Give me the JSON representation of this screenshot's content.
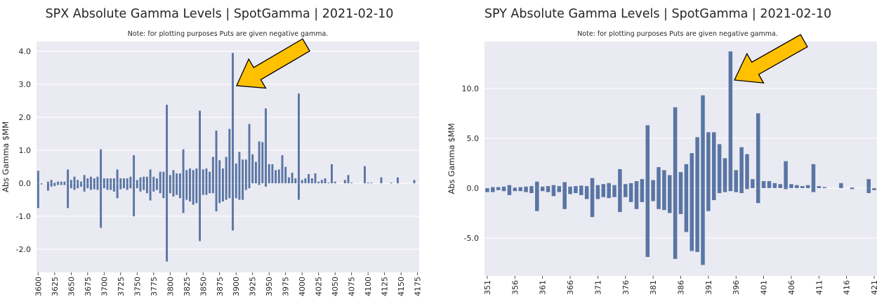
{
  "chart_data": [
    {
      "id": "spx",
      "type": "bar",
      "title": "SPX Absolute Gamma Levels | SpotGamma | 2021-02-10",
      "subtitle": "Note: for plotting purposes Puts are given negative gamma.",
      "ylabel": "Abs Gamma $MM",
      "xlabel": "",
      "ylim": [
        -2.7,
        4.3
      ],
      "yticks": [
        -2.0,
        -1.0,
        0.0,
        1.0,
        2.0,
        3.0,
        4.0
      ],
      "ytick_labels": [
        "-2.0",
        "-1.0",
        "0.0",
        "1.0",
        "2.0",
        "3.0",
        "4.0"
      ],
      "xtick_labels": [
        "3600",
        "3625",
        "3650",
        "3675",
        "3700",
        "3725",
        "3750",
        "3775",
        "3800",
        "3825",
        "3850",
        "3875",
        "3900",
        "3925",
        "3950",
        "3975",
        "4000",
        "4025",
        "4050",
        "4075",
        "4100",
        "4125",
        "4150",
        "4175"
      ],
      "grid": true,
      "legend": "none",
      "bar_color": "#5975a4",
      "background": "#eaeaf2",
      "categories": [
        3600,
        3605,
        3610,
        3615,
        3620,
        3625,
        3630,
        3635,
        3640,
        3645,
        3650,
        3655,
        3660,
        3665,
        3670,
        3675,
        3680,
        3685,
        3690,
        3695,
        3700,
        3705,
        3710,
        3715,
        3720,
        3725,
        3730,
        3735,
        3740,
        3745,
        3750,
        3755,
        3760,
        3765,
        3770,
        3775,
        3780,
        3785,
        3790,
        3795,
        3800,
        3805,
        3810,
        3815,
        3820,
        3825,
        3830,
        3835,
        3840,
        3845,
        3850,
        3855,
        3860,
        3865,
        3870,
        3875,
        3880,
        3885,
        3890,
        3895,
        3900,
        3905,
        3910,
        3915,
        3920,
        3925,
        3930,
        3935,
        3940,
        3945,
        3950,
        3955,
        3960,
        3965,
        3970,
        3975,
        3980,
        3985,
        3990,
        3995,
        4000,
        4005,
        4010,
        4015,
        4020,
        4025,
        4030,
        4035,
        4040,
        4045,
        4050,
        4055,
        4060,
        4065,
        4070,
        4075,
        4080,
        4085,
        4090,
        4095,
        4100,
        4105,
        4110,
        4115,
        4120,
        4125,
        4130,
        4135,
        4140,
        4145,
        4150,
        4155,
        4160,
        4165,
        4170,
        4175
      ],
      "calls": [
        0.38,
        0,
        0,
        0.05,
        0.1,
        0.02,
        0.05,
        0.05,
        0.05,
        0.42,
        0.1,
        0.2,
        0.1,
        0.05,
        0.25,
        0.15,
        0.2,
        0.15,
        0.2,
        1.03,
        0.15,
        0.15,
        0.15,
        0.15,
        0.42,
        0.15,
        0.15,
        0.15,
        0.2,
        0.85,
        0.1,
        0.18,
        0.2,
        0.2,
        0.42,
        0.2,
        0.15,
        0.35,
        0.35,
        2.38,
        0.25,
        0.4,
        0.3,
        0.3,
        1.03,
        0.4,
        0.45,
        0.4,
        0.45,
        2.2,
        0.42,
        0.45,
        0.35,
        0.8,
        1.6,
        0.7,
        0.45,
        0.8,
        1.65,
        3.95,
        0.6,
        0.95,
        0.72,
        0.72,
        1.8,
        0.88,
        0.65,
        1.27,
        1.25,
        2.27,
        0.58,
        0.58,
        0.4,
        0.42,
        0.85,
        0.5,
        0.18,
        0.32,
        0.15,
        2.72,
        0.1,
        0.15,
        0.28,
        0.15,
        0.3,
        0.05,
        0.1,
        0.15,
        0.02,
        0.58,
        0.05,
        0,
        0,
        0.1,
        0.25,
        0.02,
        0,
        0,
        0,
        0.52,
        0.02,
        0.02,
        0,
        0,
        0.18,
        0,
        0,
        0.02,
        0,
        0.18,
        0,
        0,
        0,
        0,
        0.1,
        0
      ],
      "puts": [
        -0.75,
        -0.03,
        0,
        -0.22,
        -0.1,
        -0.08,
        -0.05,
        -0.05,
        -0.05,
        -0.75,
        -0.15,
        -0.2,
        -0.15,
        -0.1,
        -0.25,
        -0.15,
        -0.2,
        -0.18,
        -0.2,
        -1.35,
        -0.15,
        -0.2,
        -0.2,
        -0.25,
        -0.45,
        -0.18,
        -0.15,
        -0.2,
        -0.15,
        -1.0,
        -0.15,
        -0.25,
        -0.2,
        -0.3,
        -0.52,
        -0.25,
        -0.2,
        -0.3,
        -0.45,
        -2.37,
        -0.3,
        -0.4,
        -0.35,
        -0.45,
        -0.9,
        -0.5,
        -0.55,
        -0.65,
        -0.6,
        -1.75,
        -0.35,
        -0.35,
        -0.3,
        -0.3,
        -0.85,
        -0.6,
        -0.55,
        -0.5,
        -0.45,
        -1.43,
        -0.45,
        -0.5,
        -0.5,
        -0.2,
        -0.15,
        0,
        0,
        -0.05,
        0,
        -0.1,
        0,
        0,
        0,
        0,
        0,
        0,
        0,
        0,
        0,
        -0.5,
        0,
        0,
        0,
        0,
        0,
        0,
        0,
        0,
        0,
        0,
        0,
        0,
        0,
        0,
        0,
        0,
        0,
        0,
        0,
        0,
        0,
        0,
        0,
        0,
        0,
        0,
        0,
        0,
        0,
        0,
        0,
        0,
        0,
        0,
        0,
        0
      ]
    },
    {
      "id": "spy",
      "type": "bar",
      "title": "SPY Absolute Gamma Levels | SpotGamma | 2021-02-10",
      "subtitle": "Note: for plotting purposes Puts are given negative gamma.",
      "ylabel": "Abs Gamma $MM",
      "xlabel": "",
      "ylim": [
        -8.8,
        14.7
      ],
      "yticks": [
        -5.0,
        0.0,
        5.0,
        10.0
      ],
      "ytick_labels": [
        "-5.0",
        "0.0",
        "5.0",
        "10.0"
      ],
      "xtick_labels": [
        "351",
        "356",
        "361",
        "366",
        "371",
        "376",
        "381",
        "386",
        "391",
        "396",
        "401",
        "406",
        "411",
        "416",
        "421"
      ],
      "grid": true,
      "legend": "none",
      "bar_color": "#5975a4",
      "background": "#eaeaf2",
      "categories": [
        351,
        352,
        353,
        354,
        355,
        356,
        357,
        358,
        359,
        360,
        361,
        362,
        363,
        364,
        365,
        366,
        367,
        368,
        369,
        370,
        371,
        372,
        373,
        374,
        375,
        376,
        377,
        378,
        379,
        380,
        381,
        382,
        383,
        384,
        385,
        386,
        387,
        388,
        389,
        390,
        391,
        392,
        393,
        394,
        395,
        396,
        397,
        398,
        399,
        400,
        401,
        402,
        403,
        404,
        405,
        406,
        407,
        408,
        409,
        410,
        411,
        412,
        413,
        414,
        415,
        416,
        417,
        418,
        419,
        420,
        421
      ],
      "calls": [
        0,
        0.1,
        0.1,
        0.15,
        0.3,
        0.05,
        0.1,
        0.15,
        0.2,
        0.65,
        0.15,
        0.2,
        0.3,
        0.2,
        0.6,
        0.15,
        0.2,
        0.25,
        0.2,
        1.0,
        0.3,
        0.4,
        0.5,
        0.3,
        1.9,
        0.4,
        0.5,
        0.7,
        0.9,
        6.3,
        0.8,
        2.1,
        1.8,
        1.3,
        8.1,
        1.6,
        2.4,
        3.5,
        5.1,
        9.3,
        5.6,
        5.6,
        4.4,
        3.0,
        13.7,
        1.8,
        4.1,
        3.4,
        0.9,
        7.5,
        0.7,
        0.7,
        0.5,
        0.4,
        2.7,
        0.4,
        0.3,
        0.2,
        0.3,
        2.4,
        0.2,
        0.1,
        0,
        0,
        0.5,
        0,
        0.05,
        0,
        0,
        0.9,
        0
      ],
      "puts": [
        -0.4,
        -0.4,
        -0.2,
        -0.3,
        -0.7,
        -0.3,
        -0.3,
        -0.4,
        -0.5,
        -2.3,
        -0.3,
        -0.4,
        -0.8,
        -0.4,
        -2.1,
        -0.6,
        -0.5,
        -0.7,
        -1.1,
        -2.9,
        -1.1,
        -0.9,
        -1.0,
        -0.9,
        -2.4,
        -0.9,
        -1.4,
        -2.1,
        -1.4,
        -6.9,
        -1.3,
        -2.1,
        -2.2,
        -2.5,
        -7.1,
        -2.6,
        -4.4,
        -6.3,
        -6.4,
        -7.7,
        -2.3,
        -1.2,
        -0.5,
        -0.4,
        -0.3,
        -0.4,
        -0.5,
        -0.1,
        0,
        -1.5,
        0,
        0,
        0,
        0,
        -0.1,
        0,
        0,
        0,
        0,
        -0.4,
        0,
        0,
        0,
        0,
        0,
        0,
        -0.1,
        0,
        0,
        -0.5,
        -0.2
      ]
    }
  ]
}
